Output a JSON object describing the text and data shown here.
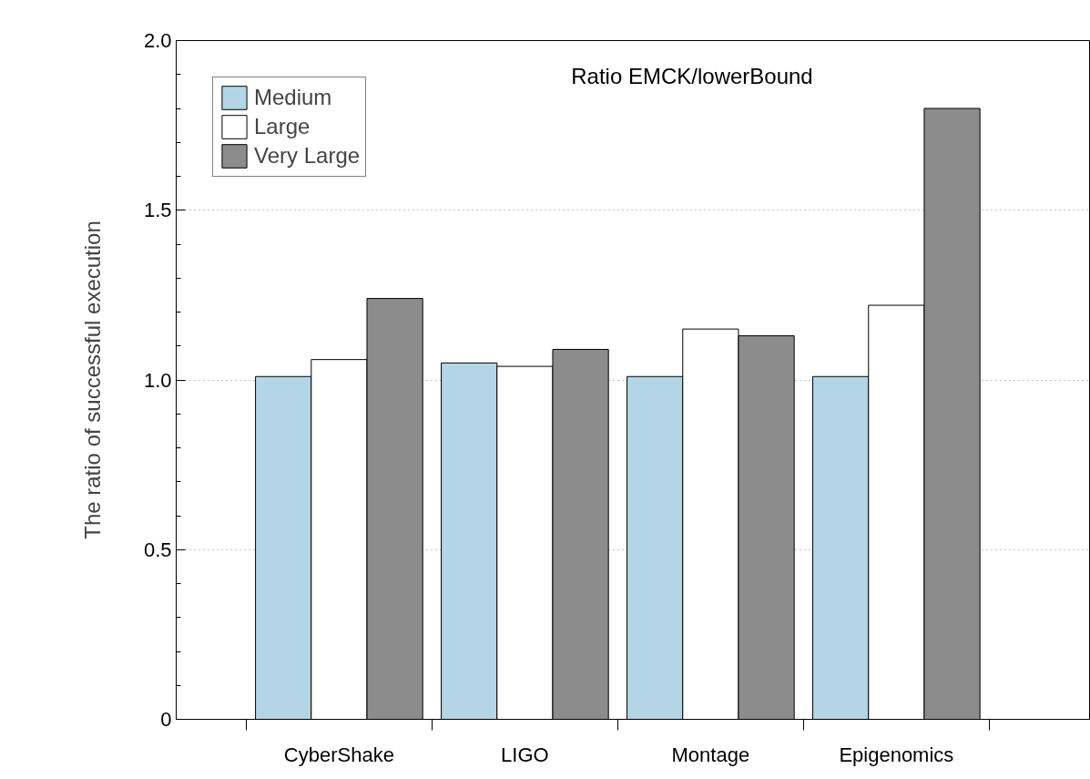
{
  "chart_data": {
    "type": "bar",
    "title": "Ratio EMCK/lowerBound",
    "ylabel": "The ratio of successful execution",
    "categories": [
      "CyberShake",
      "LIGO",
      "Montage",
      "Epigenomics"
    ],
    "series": [
      {
        "name": "Medium",
        "color": "#b3d5e6",
        "values": [
          1.01,
          1.05,
          1.01,
          1.01
        ]
      },
      {
        "name": "Large",
        "color": "#ffffff",
        "values": [
          1.06,
          1.04,
          1.15,
          1.22
        ]
      },
      {
        "name": "Very Large",
        "color": "#8c8c8c",
        "values": [
          1.24,
          1.09,
          1.13,
          1.8
        ]
      }
    ],
    "ylim": [
      0,
      2.0
    ],
    "yticks": [
      0,
      0.5,
      {
        "value": 1,
        "label": "1.0"
      },
      1.5,
      {
        "value": 2,
        "label": "2.0"
      }
    ],
    "grid": "y",
    "legend": "top left"
  }
}
